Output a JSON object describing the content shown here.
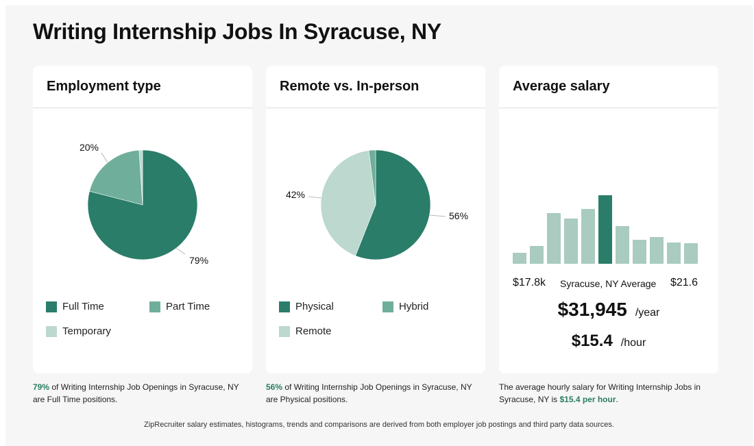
{
  "page": {
    "title": "Writing Internship Jobs In Syracuse, NY"
  },
  "employment": {
    "title": "Employment type",
    "legend": [
      {
        "label": "Full Time",
        "color": "#2a7d69"
      },
      {
        "label": "Part Time",
        "color": "#6fae9a"
      },
      {
        "label": "Temporary",
        "color": "#bcd8cf"
      }
    ],
    "caption": {
      "highlight": "79%",
      "text": " of Writing Internship Job Openings in Syracuse, NY are Full Time positions."
    }
  },
  "remote": {
    "title": "Remote vs. In-person",
    "legend": [
      {
        "label": "Physical",
        "color": "#2a7d69"
      },
      {
        "label": "Hybrid",
        "color": "#6fae9a"
      },
      {
        "label": "Remote",
        "color": "#bcd8cf"
      }
    ],
    "caption": {
      "highlight": "56%",
      "text": " of Writing Internship Job Openings in Syracuse, NY are Physical positions."
    }
  },
  "salary": {
    "title": "Average salary",
    "range_min": "$17.8k",
    "range_label": "Syracuse, NY Average",
    "range_max": "$21.6",
    "yearly": "$31,945",
    "yearly_unit": "/year",
    "hourly": "$15.4",
    "hourly_unit": "/hour",
    "caption": {
      "text": "The average hourly salary for Writing Internship Jobs in Syracuse, NY is ",
      "highlight": "$15.4 per hour",
      "end": "."
    }
  },
  "footer": "ZipRecruiter salary estimates, histograms, trends and comparisons are derived from both employer job postings and third party data sources.",
  "chart_data": [
    {
      "type": "pie",
      "categories": [
        "Full Time",
        "Part Time",
        "Temporary"
      ],
      "values": [
        79,
        20,
        1
      ],
      "labels": [
        "79%",
        "20%",
        ""
      ],
      "colors": [
        "#2a7d69",
        "#6fae9a",
        "#bcd8cf"
      ]
    },
    {
      "type": "pie",
      "categories": [
        "Physical",
        "Remote",
        "Hybrid"
      ],
      "values": [
        56,
        42,
        2
      ],
      "labels": [
        "56%",
        "42%",
        ""
      ],
      "colors": [
        "#2a7d69",
        "#bcd8cf",
        "#6fae9a"
      ]
    },
    {
      "type": "bar",
      "values": [
        16,
        26,
        74,
        66,
        80,
        100,
        55,
        35,
        39,
        31,
        30
      ],
      "highlight_index": 5,
      "colors": {
        "base": "#a9cbc0",
        "highlight": "#2a7d69"
      }
    }
  ]
}
